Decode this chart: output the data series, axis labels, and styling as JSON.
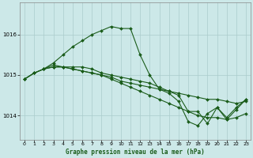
{
  "title": "Graphe pression niveau de la mer (hPa)",
  "background_color": "#cce8e8",
  "grid_color": "#aacccc",
  "line_color": "#1a5c1a",
  "marker_color": "#1a5c1a",
  "xlim": [
    -0.5,
    23.5
  ],
  "ylim": [
    1013.4,
    1016.8
  ],
  "yticks": [
    1014,
    1015,
    1016
  ],
  "xticks": [
    0,
    1,
    2,
    3,
    4,
    5,
    6,
    7,
    8,
    9,
    10,
    11,
    12,
    13,
    14,
    15,
    16,
    17,
    18,
    19,
    20,
    21,
    22,
    23
  ],
  "line1_x": [
    0,
    1,
    2,
    3,
    4,
    5,
    6,
    7,
    8,
    9,
    10,
    11,
    12,
    13,
    14,
    15,
    16,
    17,
    18,
    19,
    20,
    21,
    22,
    23
  ],
  "line1_y": [
    1014.9,
    1015.05,
    1015.15,
    1015.2,
    1015.2,
    1015.15,
    1015.1,
    1015.05,
    1015.0,
    1014.95,
    1014.85,
    1014.8,
    1014.75,
    1014.7,
    1014.65,
    1014.6,
    1014.55,
    1014.5,
    1014.45,
    1014.4,
    1014.4,
    1014.35,
    1014.3,
    1014.35
  ],
  "line2_x": [
    0,
    1,
    2,
    3,
    4,
    5,
    6,
    7,
    8,
    9,
    10,
    11,
    12,
    13,
    14,
    15,
    16,
    17,
    18,
    19,
    20,
    21,
    22,
    23
  ],
  "line2_y": [
    1014.9,
    1015.05,
    1015.15,
    1015.2,
    1015.2,
    1015.15,
    1015.1,
    1015.05,
    1015.0,
    1014.9,
    1014.8,
    1014.7,
    1014.6,
    1014.5,
    1014.4,
    1014.3,
    1014.2,
    1014.1,
    1014.0,
    1013.95,
    1013.95,
    1013.9,
    1013.95,
    1014.05
  ],
  "line3_x": [
    0,
    1,
    2,
    3,
    4,
    5,
    6,
    7,
    8,
    9,
    10,
    11,
    12,
    13,
    14,
    15,
    16,
    17,
    18,
    19,
    20,
    21,
    22,
    23
  ],
  "line3_y": [
    1014.9,
    1015.05,
    1015.15,
    1015.3,
    1015.5,
    1015.7,
    1015.85,
    1016.0,
    1016.1,
    1016.2,
    1016.15,
    1016.15,
    1015.5,
    1015.0,
    1014.65,
    1014.55,
    1014.35,
    1013.85,
    1013.75,
    1014.05,
    1014.2,
    1013.9,
    1014.15,
    1014.4
  ],
  "line4_x": [
    2,
    3,
    4,
    5,
    6,
    7,
    8,
    9,
    10,
    11,
    12,
    13,
    14,
    15,
    16,
    17,
    18,
    19,
    20,
    21,
    22,
    23
  ],
  "line4_y": [
    1015.15,
    1015.25,
    1015.2,
    1015.2,
    1015.2,
    1015.15,
    1015.05,
    1015.0,
    1014.95,
    1014.9,
    1014.85,
    1014.8,
    1014.7,
    1014.6,
    1014.5,
    1014.1,
    1014.1,
    1013.8,
    1014.2,
    1013.95,
    1014.2,
    1014.4
  ]
}
